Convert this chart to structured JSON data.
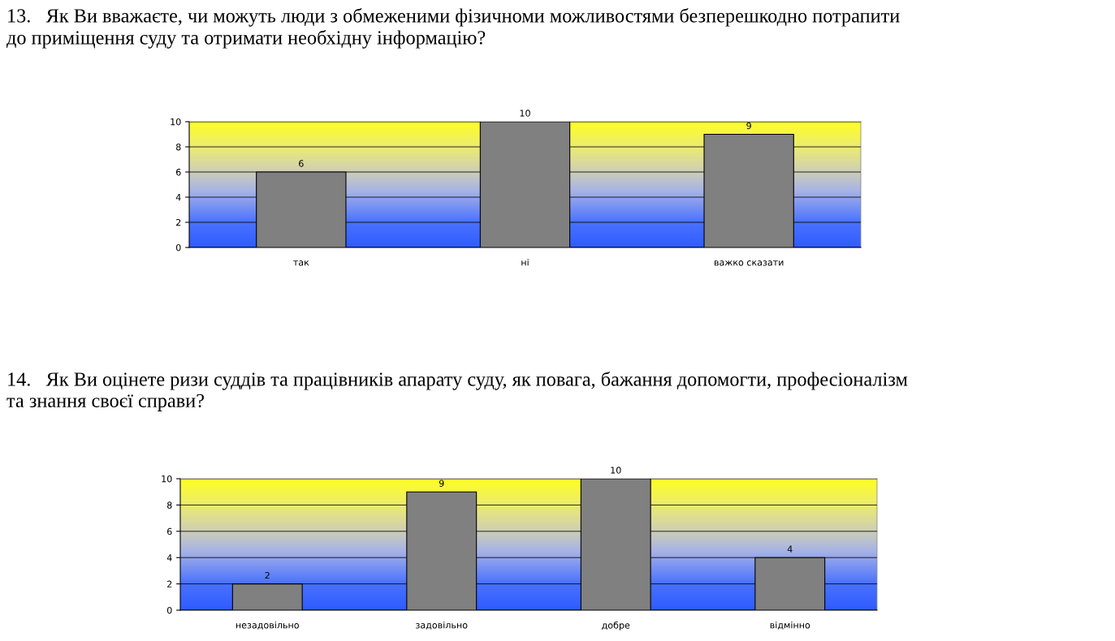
{
  "chart_data": [
    {
      "type": "bar",
      "title": "13.   Як Ви вважаєте, чи можуть люди з обмеженими фізичноми можливостями безперешкодно потрапити\nдо приміщення суду та отримати необхідну інформацію?",
      "categories": [
        "так",
        "ні",
        "важко сказати"
      ],
      "values": [
        6,
        10,
        9
      ],
      "color": "#808080",
      "ylim": [
        0,
        10
      ],
      "yticks": [
        0,
        2,
        4,
        6,
        8,
        10
      ],
      "grid": "y",
      "data_labels": true
    },
    {
      "type": "bar",
      "title": "14.   Як Ви оцінете ризи суддів та працівників апарату суду, як повага, бажання допомогти, професіоналізм\nта знання своєї справи?",
      "categories": [
        "незадовільно",
        "задовільно",
        "добре",
        "відмінно"
      ],
      "values": [
        2,
        9,
        10,
        4
      ],
      "color": "#808080",
      "ylim": [
        0,
        10
      ],
      "yticks": [
        0,
        2,
        4,
        6,
        8,
        10
      ],
      "grid": "y",
      "data_labels": true
    }
  ]
}
